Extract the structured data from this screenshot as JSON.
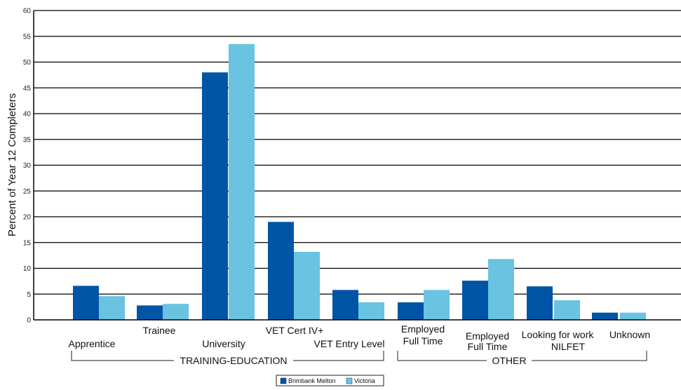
{
  "chart_data": {
    "type": "bar",
    "ylabel": "Percent of Year 12 Completers",
    "ylim": [
      0,
      60
    ],
    "yticks": [
      0,
      5,
      10,
      15,
      20,
      25,
      30,
      35,
      40,
      45,
      50,
      55,
      60
    ],
    "grid": true,
    "categories": [
      "Apprentice",
      "Trainee",
      "University",
      "VET Cert IV+",
      "VET Entry Level",
      "Employed Full Time",
      "Employed Full Time",
      "Looking for work",
      "NILFET",
      "Unknown"
    ],
    "series": [
      {
        "name": "Brimbank Melton",
        "color": "#0054a6",
        "values": [
          6.6,
          2.8,
          48.0,
          19.0,
          5.8,
          3.4,
          7.6,
          6.5,
          null,
          1.4
        ]
      },
      {
        "name": "Victoria",
        "color": "#6ac3e0",
        "values": [
          4.6,
          3.1,
          53.5,
          13.2,
          3.4,
          5.8,
          11.8,
          3.8,
          null,
          1.4
        ]
      }
    ],
    "groups": [
      "TRAINING-EDUCATION",
      "OTHER"
    ],
    "legend_position": "bottom-center"
  },
  "labels": {
    "apprentice": "Apprentice",
    "trainee": "Trainee",
    "university": "University",
    "vet_cert": "VET Cert IV+",
    "vet_entry": "VET Entry Level",
    "emp_ft_1_line1": "Employed",
    "emp_ft_1_line2": "Full Time",
    "emp_ft_2_line1": "Employed",
    "emp_ft_2_line2": "Full Time",
    "looking": "Looking for work",
    "nilfet": "NILFET",
    "unknown": "Unknown"
  }
}
